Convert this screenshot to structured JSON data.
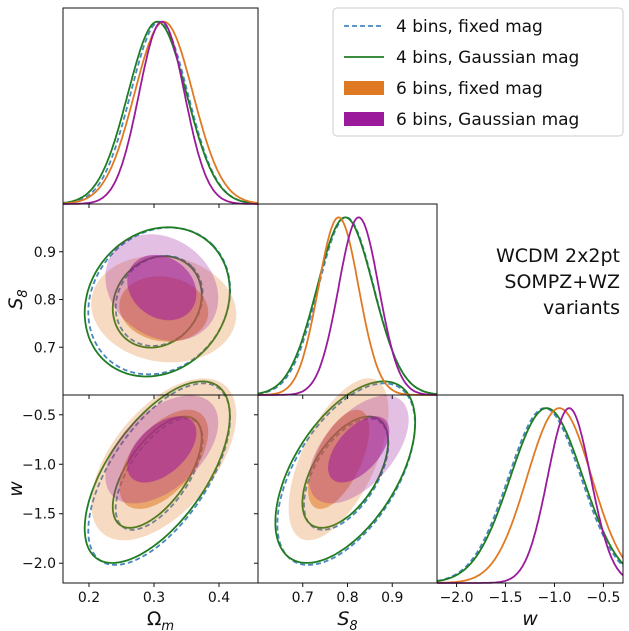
{
  "chart_data": {
    "type": "corner",
    "parameters": [
      {
        "key": "om",
        "label": "Ω_m",
        "range": [
          0.16,
          0.46
        ],
        "ticks": [
          0.2,
          0.3,
          0.4
        ]
      },
      {
        "key": "s8",
        "label": "S_8",
        "range": [
          0.6,
          1.0
        ],
        "ticks": [
          0.7,
          0.8,
          0.9
        ]
      },
      {
        "key": "w",
        "label": "w",
        "range": [
          -2.2,
          -0.3
        ],
        "ticks": [
          -2.0,
          -1.5,
          -1.0,
          -0.5
        ]
      }
    ],
    "tick_format": {
      "om": "0.1",
      "s8": "0.1",
      "w": "0.1"
    },
    "series": [
      {
        "name": "4 bins, fixed mag",
        "style": "dashed",
        "color": "#4a86c0",
        "means": {
          "om": 0.308,
          "s8": 0.797,
          "w": -1.1
        },
        "sigmas": {
          "om": 0.044,
          "s8": 0.062,
          "w": 0.37
        },
        "corr": {
          "om_s8": 0.15,
          "om_w": 0.62,
          "s8_w": 0.55
        }
      },
      {
        "name": "4 bins, Gaussian mag",
        "style": "line",
        "color": "#1e7d22",
        "means": {
          "om": 0.305,
          "s8": 0.795,
          "w": -1.08
        },
        "sigmas": {
          "om": 0.045,
          "s8": 0.063,
          "w": 0.37
        },
        "corr": {
          "om_s8": 0.15,
          "om_w": 0.62,
          "s8_w": 0.55
        }
      },
      {
        "name": "6 bins, fixed mag",
        "style": "filled",
        "color": "#e07a22",
        "means": {
          "om": 0.315,
          "s8": 0.78,
          "w": -0.95
        },
        "sigmas": {
          "om": 0.045,
          "s8": 0.045,
          "w": 0.33
        },
        "corr": {
          "om_s8": -0.1,
          "om_w": 0.55,
          "s8_w": 0.6
        }
      },
      {
        "name": "6 bins, Gaussian mag",
        "style": "filled",
        "color": "#9b1a9b",
        "means": {
          "om": 0.312,
          "s8": 0.825,
          "w": -0.85
        },
        "sigmas": {
          "om": 0.035,
          "s8": 0.045,
          "w": 0.22
        },
        "corr": {
          "om_s8": -0.2,
          "om_w": 0.5,
          "s8_w": 0.55
        }
      }
    ],
    "annotation": [
      "WCDM 2x2pt",
      "SOMPZ+WZ",
      "variants"
    ],
    "legend_position": "upper-right"
  }
}
